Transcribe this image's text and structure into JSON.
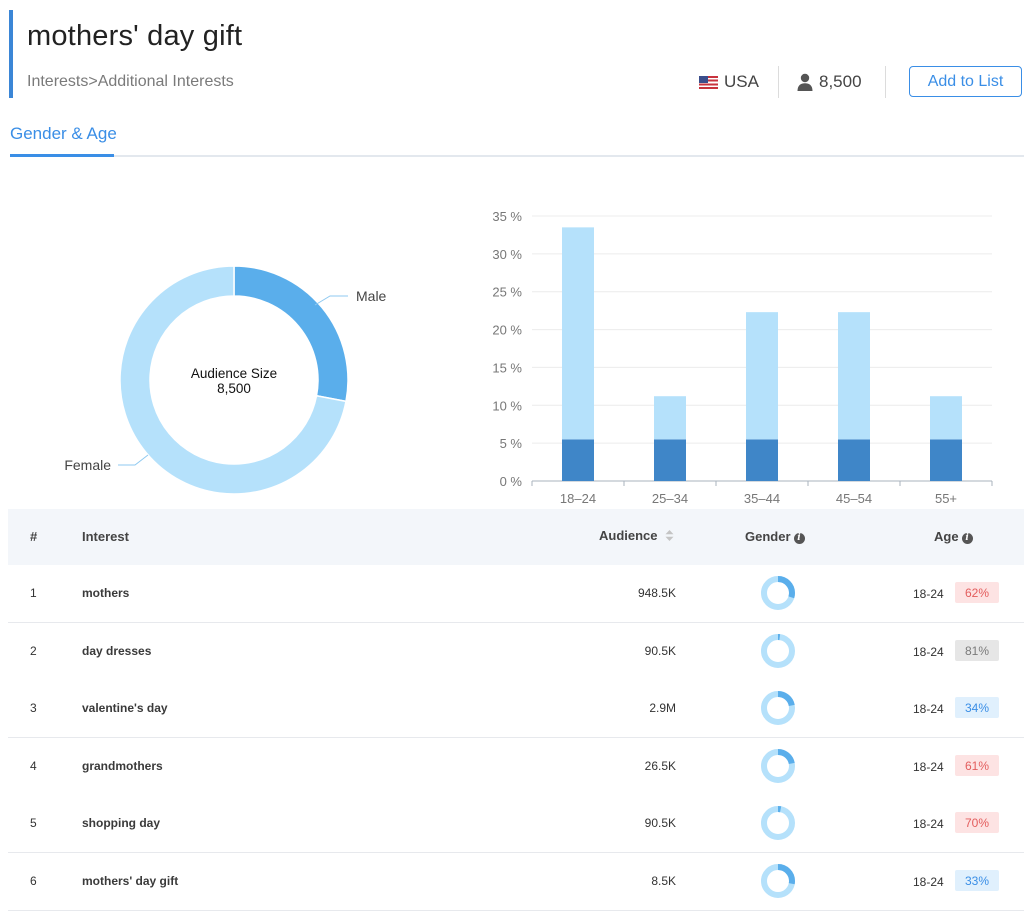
{
  "header": {
    "title": "mothers' day gift",
    "breadcrumb": "Interests>Additional Interests",
    "country": "USA",
    "audience": "8,500",
    "add_button": "Add to List"
  },
  "tabs": [
    {
      "label": "Gender & Age",
      "active": true
    }
  ],
  "donut": {
    "center_label": "Audience Size",
    "center_value": "8,500",
    "slices": [
      {
        "name": "Male",
        "fraction": 0.28,
        "color": "#5aaeeb"
      },
      {
        "name": "Female",
        "fraction": 0.72,
        "color": "#b5e1fb"
      }
    ]
  },
  "chart_data": {
    "type": "bar",
    "categories": [
      "18–24",
      "25–34",
      "35–44",
      "45–54",
      "55+"
    ],
    "series": [
      {
        "values": [
          5.5,
          5.5,
          5.5,
          5.5,
          5.5
        ],
        "color": "#3f86c8"
      },
      {
        "values": [
          28,
          5.7,
          16.8,
          16.8,
          5.7
        ],
        "color": "#b5e1fb"
      }
    ],
    "stacked": true,
    "ylim": [
      0,
      35
    ],
    "yticks": [
      "0 %",
      "5 %",
      "10 %",
      "15 %",
      "20 %",
      "25 %",
      "30 %",
      "35 %"
    ],
    "grid": true
  },
  "table": {
    "headers": {
      "num": "#",
      "interest": "Interest",
      "audience": "Audience",
      "gender": "Gender",
      "age": "Age"
    },
    "rows": [
      {
        "num": "1",
        "interest": "mothers",
        "audience": "948.5K",
        "male_fraction": 0.3,
        "age": "18-24",
        "pct": "62%",
        "badge": "red"
      },
      {
        "num": "2",
        "interest": "day dresses",
        "audience": "90.5K",
        "male_fraction": 0.02,
        "age": "18-24",
        "pct": "81%",
        "badge": "gray"
      },
      {
        "num": "3",
        "interest": "valentine's day",
        "audience": "2.9M",
        "male_fraction": 0.22,
        "age": "18-24",
        "pct": "34%",
        "badge": "blue"
      },
      {
        "num": "4",
        "interest": "grandmothers",
        "audience": "26.5K",
        "male_fraction": 0.22,
        "age": "18-24",
        "pct": "61%",
        "badge": "red"
      },
      {
        "num": "5",
        "interest": "shopping day",
        "audience": "90.5K",
        "male_fraction": 0.03,
        "age": "18-24",
        "pct": "70%",
        "badge": "red"
      },
      {
        "num": "6",
        "interest": "mothers' day gift",
        "audience": "8.5K",
        "male_fraction": 0.28,
        "age": "18-24",
        "pct": "33%",
        "badge": "blue"
      }
    ]
  },
  "colors": {
    "accent": "#3a8ee6",
    "badge_red_bg": "#fde3e3",
    "badge_red_fg": "#e35d5d",
    "badge_gray_bg": "#e6e6e6",
    "badge_gray_fg": "#7a7a7a",
    "badge_blue_bg": "#e0f0fd",
    "badge_blue_fg": "#3a8ee6"
  },
  "icons": {
    "country": "us-flag-icon",
    "audience": "person-icon",
    "sort": "sort-icon",
    "info": "info-icon"
  }
}
